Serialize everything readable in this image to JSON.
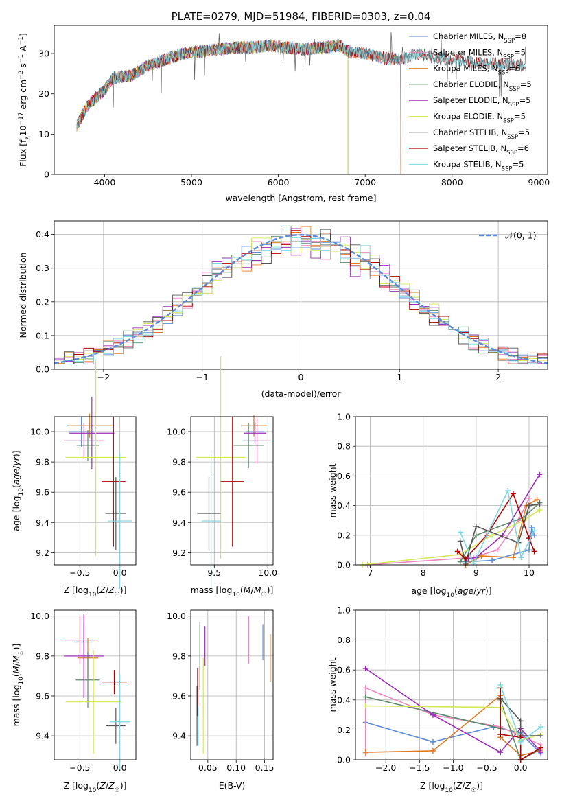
{
  "colors": {
    "blue": "#5b8bd6",
    "pink": "#e889c0",
    "orange": "#e07b22",
    "green": "#5d8a6a",
    "purple": "#9a2fb5",
    "yellow": "#d4e855",
    "gray": "#555555",
    "red": "#b00000",
    "cyan": "#7dd6e0",
    "normal": "#5b8bd6"
  },
  "chart_data": [
    {
      "id": "spectrum",
      "type": "line",
      "title": "PLATE=0279, MJD=51984, FIBERID=0303, z=0.04",
      "xlabel": "wavelength [Angstrom, rest frame]",
      "ylabel_parts": [
        "Flux [f",
        "λ",
        "10",
        "−17",
        " erg cm",
        "−2",
        " s",
        "−1",
        " A",
        "−1",
        "]"
      ],
      "xlim": [
        3420,
        9100
      ],
      "ylim": [
        0,
        37
      ],
      "xticks": [
        4000,
        5000,
        6000,
        7000,
        8000,
        9000
      ],
      "yticks": [
        0,
        10,
        20,
        30
      ],
      "grid": false,
      "legend_position": "top-right",
      "approx_continuum": [
        [
          3680,
          12
        ],
        [
          3800,
          17
        ],
        [
          3900,
          19
        ],
        [
          4000,
          21
        ],
        [
          4100,
          24
        ],
        [
          4300,
          24.5
        ],
        [
          4500,
          27
        ],
        [
          4700,
          28.5
        ],
        [
          4900,
          30
        ],
        [
          5100,
          30.5
        ],
        [
          5300,
          31
        ],
        [
          5500,
          31.5
        ],
        [
          5700,
          31.5
        ],
        [
          5900,
          32
        ],
        [
          6100,
          31.5
        ],
        [
          6300,
          31
        ],
        [
          6500,
          31.5
        ],
        [
          6700,
          32
        ],
        [
          6800,
          30.5
        ],
        [
          7000,
          30
        ],
        [
          7200,
          29
        ],
        [
          7400,
          28.5
        ],
        [
          7600,
          30
        ],
        [
          7800,
          29
        ],
        [
          8000,
          28.5
        ],
        [
          8200,
          28
        ],
        [
          8400,
          27.5
        ],
        [
          8600,
          27.5
        ],
        [
          8850,
          27
        ]
      ],
      "series": [
        {
          "name": "Chabrier MILES, N",
          "sub": "SSP",
          "suffix": "=8",
          "color": "blue",
          "xmax": 7410
        },
        {
          "name": "Salpeter MILES, N",
          "sub": "SSP",
          "suffix": "=5",
          "color": "pink",
          "xmax": 7410
        },
        {
          "name": "Kroupa MILES, N",
          "sub": "SSP",
          "suffix": "=6",
          "color": "orange",
          "xmax": 7410
        },
        {
          "name": "Chabrier ELODIE, N",
          "sub": "SSP",
          "suffix": "=5",
          "color": "green",
          "xmax": 6800
        },
        {
          "name": "Salpeter ELODIE, N",
          "sub": "SSP",
          "suffix": "=5",
          "color": "purple",
          "xmax": 6800
        },
        {
          "name": "Kroupa ELODIE, N",
          "sub": "SSP",
          "suffix": "=5",
          "color": "yellow",
          "xmax": 6800
        },
        {
          "name": "Chabrier STELIB, N",
          "sub": "SSP",
          "suffix": "=5",
          "color": "gray",
          "xmax": 8850
        },
        {
          "name": "Salpeter STELIB, N",
          "sub": "SSP",
          "suffix": "=6",
          "color": "red",
          "xmax": 8850
        },
        {
          "name": "Kroupa STELIB, N",
          "sub": "SSP",
          "suffix": "=5",
          "color": "cyan",
          "xmax": 8850
        }
      ]
    },
    {
      "id": "residuals",
      "type": "histogram",
      "xlabel": "(data-model)/error",
      "ylabel": "Normed distribution",
      "xlim": [
        -2.5,
        2.5
      ],
      "ylim": [
        0,
        0.44
      ],
      "xticks": [
        -2,
        -1,
        0,
        1,
        2
      ],
      "yticks": [
        0.0,
        0.1,
        0.2,
        0.3,
        0.4
      ],
      "grid": true,
      "legend": "𝒩(0, 1)",
      "legend_position": "top-right",
      "bin_width": 0.1,
      "note": "nine step histograms, one per model, same colors as spectrum"
    },
    {
      "id": "age_vs_Z",
      "type": "errorbar",
      "xlabel": "Z [log10(Z/Z☉)]",
      "ylabel": "age [log10(age/yr)]",
      "xlim": [
        -0.82,
        0.2
      ],
      "ylim": [
        9.12,
        10.1
      ],
      "xticks": [
        -0.5,
        0.0
      ],
      "yticks": [
        9.2,
        9.4,
        9.6,
        9.8,
        10.0
      ],
      "grid": true,
      "points": [
        {
          "color": "blue",
          "x": -0.48,
          "xerr": 0.15,
          "y": 10.0,
          "yerr": 0.1
        },
        {
          "color": "pink",
          "x": -0.45,
          "xerr": 0.25,
          "y": 9.94,
          "yerr": 0.12
        },
        {
          "color": "orange",
          "x": -0.38,
          "xerr": 0.28,
          "y": 10.04,
          "yerr": 0.08
        },
        {
          "color": "green",
          "x": -0.4,
          "xerr": 0.14,
          "y": 9.91,
          "yerr": 0.1
        },
        {
          "color": "purple",
          "x": -0.35,
          "xerr": 0.28,
          "y": 9.99,
          "yerr": 0.24
        },
        {
          "color": "yellow",
          "x": -0.3,
          "xerr": 0.38,
          "y": 9.83,
          "yerr": 0.65
        },
        {
          "color": "gray",
          "x": -0.05,
          "xerr": 0.13,
          "y": 9.46,
          "yerr": 0.24
        },
        {
          "color": "red",
          "x": -0.08,
          "xerr": 0.15,
          "y": 9.67,
          "yerr": 0.43
        },
        {
          "color": "cyan",
          "x": 0.0,
          "xerr": 0.15,
          "y": 9.41,
          "yerr": 0.45
        }
      ]
    },
    {
      "id": "age_vs_mass",
      "type": "errorbar",
      "xlabel": "mass [log10(M/M☉)]",
      "ylabel": "",
      "xlim": [
        9.28,
        10.05
      ],
      "ylim": [
        9.12,
        10.1
      ],
      "xticks": [
        9.5,
        10.0
      ],
      "yticks": [
        9.2,
        9.4,
        9.6,
        9.8,
        10.0
      ],
      "grid": true,
      "points": [
        {
          "color": "blue",
          "x": 9.88,
          "xerr": 0.08,
          "y": 10.0,
          "yerr": 0.09
        },
        {
          "color": "pink",
          "x": 9.9,
          "xerr": 0.13,
          "y": 9.94,
          "yerr": 0.15
        },
        {
          "color": "orange",
          "x": 9.87,
          "xerr": 0.12,
          "y": 10.04,
          "yerr": 0.07
        },
        {
          "color": "green",
          "x": 9.82,
          "xerr": 0.14,
          "y": 9.91,
          "yerr": 0.15
        },
        {
          "color": "purple",
          "x": 9.88,
          "xerr": 0.1,
          "y": 9.99,
          "yerr": 0.07
        },
        {
          "color": "yellow",
          "x": 9.56,
          "xerr": 0.23,
          "y": 9.83,
          "yerr": 0.67
        },
        {
          "color": "gray",
          "x": 9.45,
          "xerr": 0.11,
          "y": 9.46,
          "yerr": 0.24
        },
        {
          "color": "red",
          "x": 9.67,
          "xerr": 0.11,
          "y": 9.67,
          "yerr": 0.43
        },
        {
          "color": "cyan",
          "x": 9.47,
          "xerr": 0.09,
          "y": 9.41,
          "yerr": 0.46
        }
      ]
    },
    {
      "id": "weight_vs_age",
      "type": "line",
      "xlabel": "age [log10(age/yr)]",
      "ylabel": "mass weight",
      "xlim": [
        6.72,
        10.35
      ],
      "ylim": [
        0,
        1.0
      ],
      "xticks": [
        7,
        8,
        9,
        10
      ],
      "yticks": [
        0.0,
        0.2,
        0.4,
        0.6,
        0.8,
        1.0
      ],
      "grid": true,
      "series": [
        {
          "color": "blue",
          "x": [
            8.8,
            9.3,
            10.0,
            10.05,
            10.1
          ],
          "y": [
            0.02,
            0.03,
            0.1,
            0.25,
            0.2
          ]
        },
        {
          "color": "pink",
          "x": [
            6.95,
            8.95,
            9.4,
            9.8,
            10.0
          ],
          "y": [
            0.0,
            0.05,
            0.1,
            0.3,
            0.45
          ]
        },
        {
          "color": "orange",
          "x": [
            8.8,
            9.1,
            9.7,
            9.95,
            10.15
          ],
          "y": [
            0.0,
            0.06,
            0.05,
            0.4,
            0.44
          ]
        },
        {
          "color": "green",
          "x": [
            8.7,
            9.0,
            9.9,
            10.2
          ],
          "y": [
            0.02,
            0.2,
            0.32,
            0.42
          ]
        },
        {
          "color": "purple",
          "x": [
            8.85,
            9.0,
            9.5,
            10.2
          ],
          "y": [
            0.04,
            0.05,
            0.2,
            0.61
          ]
        },
        {
          "color": "yellow",
          "x": [
            6.85,
            8.7,
            9.3,
            9.9,
            10.2
          ],
          "y": [
            0.0,
            0.07,
            0.2,
            0.3,
            0.37
          ]
        },
        {
          "color": "gray",
          "x": [
            8.7,
            8.8,
            9.0,
            9.8,
            10.0,
            10.2
          ],
          "y": [
            0.16,
            0.01,
            0.26,
            0.15,
            0.4,
            0.41
          ]
        },
        {
          "color": "red",
          "x": [
            8.65,
            8.8,
            9.2,
            9.7,
            10.0,
            10.1
          ],
          "y": [
            0.09,
            0.04,
            0.2,
            0.48,
            0.18,
            0.09
          ]
        },
        {
          "color": "cyan",
          "x": [
            8.7,
            8.95,
            9.6,
            9.85,
            10.1
          ],
          "y": [
            0.22,
            0.01,
            0.5,
            0.05,
            0.23
          ]
        }
      ]
    },
    {
      "id": "mass_vs_Z",
      "type": "errorbar",
      "xlabel": "Z [log10(Z/Z☉)]",
      "ylabel": "mass [log10(M/M☉)]",
      "xlim": [
        -0.82,
        0.2
      ],
      "ylim": [
        9.28,
        10.03
      ],
      "xticks": [
        -0.5,
        0.0
      ],
      "yticks": [
        9.4,
        9.6,
        9.8,
        10.0
      ],
      "grid": true,
      "points": [
        {
          "color": "blue",
          "x": -0.45,
          "xerr": 0.12,
          "y": 9.87,
          "yerr": 0.09
        },
        {
          "color": "pink",
          "x": -0.5,
          "xerr": 0.23,
          "y": 9.88,
          "yerr": 0.12
        },
        {
          "color": "orange",
          "x": -0.4,
          "xerr": 0.13,
          "y": 9.79,
          "yerr": 0.1
        },
        {
          "color": "green",
          "x": -0.4,
          "xerr": 0.15,
          "y": 9.68,
          "yerr": 0.14
        },
        {
          "color": "purple",
          "x": -0.45,
          "xerr": 0.25,
          "y": 9.8,
          "yerr": 0.21
        },
        {
          "color": "yellow",
          "x": -0.33,
          "xerr": 0.35,
          "y": 9.57,
          "yerr": 0.26
        },
        {
          "color": "gray",
          "x": -0.05,
          "xerr": 0.12,
          "y": 9.45,
          "yerr": 0.09
        },
        {
          "color": "red",
          "x": -0.07,
          "xerr": 0.16,
          "y": 9.67,
          "yerr": 0.06
        },
        {
          "color": "cyan",
          "x": 0.0,
          "xerr": 0.13,
          "y": 9.47,
          "yerr": 0.24
        }
      ]
    },
    {
      "id": "mass_vs_ebv",
      "type": "errorbar",
      "xlabel": "E(B-V)",
      "ylabel": "",
      "xlim": [
        0.02,
        0.165
      ],
      "ylim": [
        9.28,
        10.03
      ],
      "xticks": [
        0.05,
        0.1,
        0.15
      ],
      "yticks": [
        9.4,
        9.6,
        9.8,
        10.0
      ],
      "grid": true,
      "points": [
        {
          "color": "blue",
          "x": 0.147,
          "xerr": 0,
          "y": 9.87,
          "yerr": 0.09
        },
        {
          "color": "pink",
          "x": 0.122,
          "xerr": 0,
          "y": 9.88,
          "yerr": 0.12
        },
        {
          "color": "orange",
          "x": 0.16,
          "xerr": 0,
          "y": 9.79,
          "yerr": 0.12
        },
        {
          "color": "green",
          "x": 0.036,
          "xerr": 0,
          "y": 9.8,
          "yerr": 0.17
        },
        {
          "color": "purple",
          "x": 0.045,
          "xerr": 0,
          "y": 9.85,
          "yerr": 0.1
        },
        {
          "color": "yellow",
          "x": 0.042,
          "xerr": 0,
          "y": 9.55,
          "yerr": 0.24
        },
        {
          "color": "gray",
          "x": 0.031,
          "xerr": 0,
          "y": 9.5,
          "yerr": 0.15
        },
        {
          "color": "red",
          "x": 0.032,
          "xerr": 0,
          "y": 9.62,
          "yerr": 0.12
        },
        {
          "color": "cyan",
          "x": 0.033,
          "xerr": 0,
          "y": 9.45,
          "yerr": 0.1
        }
      ]
    },
    {
      "id": "weight_vs_Z",
      "type": "line",
      "xlabel": "Z [log10(Z/Z☉)]",
      "ylabel": "mass weight",
      "xlim": [
        -2.45,
        0.4
      ],
      "ylim": [
        0,
        1.0
      ],
      "xticks": [
        -2.0,
        -1.5,
        -1.0,
        -0.5,
        0.0
      ],
      "yticks": [
        0.0,
        0.2,
        0.4,
        0.6,
        0.8,
        1.0
      ],
      "grid": true,
      "series": [
        {
          "color": "blue",
          "x": [
            -2.3,
            -1.3,
            -0.4,
            0.0,
            0.3
          ],
          "y": [
            0.25,
            0.12,
            0.22,
            0.18,
            0.04
          ]
        },
        {
          "color": "pink",
          "x": [
            -2.3,
            -2.3,
            -1.3,
            -0.3,
            0.3
          ],
          "y": [
            0.04,
            0.48,
            0.3,
            0.22,
            0.1
          ]
        },
        {
          "color": "orange",
          "x": [
            -2.3,
            -1.3,
            -0.3,
            -0.3,
            0.0,
            0.3
          ],
          "y": [
            0.05,
            0.06,
            0.43,
            0.15,
            0.03,
            0.06
          ]
        },
        {
          "color": "green",
          "x": [
            -2.3,
            -0.3,
            -0.3,
            0.0,
            0.3
          ],
          "y": [
            0.42,
            0.21,
            0.4,
            0.0,
            0.07
          ]
        },
        {
          "color": "purple",
          "x": [
            -2.3,
            -1.3,
            -0.3,
            0.0,
            0.3
          ],
          "y": [
            0.61,
            0.3,
            0.05,
            0.21,
            0.05
          ]
        },
        {
          "color": "yellow",
          "x": [
            -2.3,
            -0.3,
            0.0,
            0.3
          ],
          "y": [
            0.36,
            0.35,
            0.13,
            0.17
          ]
        },
        {
          "color": "gray",
          "x": [
            -0.3,
            0.0,
            0.0,
            0.3
          ],
          "y": [
            0.41,
            0.26,
            0.16,
            0.16
          ]
        },
        {
          "color": "red",
          "x": [
            -0.3,
            -0.3,
            0.0,
            0.0,
            0.3
          ],
          "y": [
            0.48,
            0.17,
            0.15,
            0.0,
            0.08
          ]
        },
        {
          "color": "cyan",
          "x": [
            -0.3,
            0.0,
            0.3
          ],
          "y": [
            0.5,
            0.12,
            0.22
          ]
        }
      ]
    }
  ]
}
